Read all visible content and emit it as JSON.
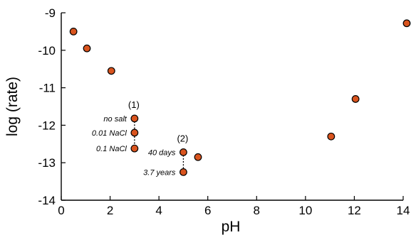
{
  "chart_data": {
    "type": "scatter",
    "title": "",
    "xlabel": "pH",
    "ylabel": "log (rate)",
    "xlim": [
      0,
      14
    ],
    "ylim": [
      -14,
      -9
    ],
    "xticks": [
      "0",
      "2",
      "4",
      "6",
      "8",
      "10",
      "12",
      "14"
    ],
    "yticks": [
      "-9",
      "-10",
      "-11",
      "-12",
      "-13",
      "-14"
    ],
    "grid": false,
    "marker_color": "#d9541e",
    "points": [
      {
        "x": 0.5,
        "y": -9.5
      },
      {
        "x": 1.05,
        "y": -9.95
      },
      {
        "x": 2.05,
        "y": -10.55
      },
      {
        "x": 3.0,
        "y": -11.82,
        "label": "no salt"
      },
      {
        "x": 3.0,
        "y": -12.2,
        "label": "0.01 NaCl"
      },
      {
        "x": 3.0,
        "y": -12.62,
        "label": "0.1 NaCl"
      },
      {
        "x": 5.0,
        "y": -12.72,
        "label": "40 days"
      },
      {
        "x": 5.0,
        "y": -13.25,
        "label": "3.7 years"
      },
      {
        "x": 5.6,
        "y": -12.85
      },
      {
        "x": 11.05,
        "y": -12.3
      },
      {
        "x": 12.05,
        "y": -11.3
      },
      {
        "x": 14.2,
        "y": -9.28
      }
    ],
    "groups": [
      {
        "label": "(1)",
        "x": 3.0,
        "y": -11.82,
        "members": [
          3,
          4,
          5
        ]
      },
      {
        "label": "(2)",
        "x": 5.0,
        "y": -12.72,
        "members": [
          6,
          7
        ]
      }
    ]
  }
}
